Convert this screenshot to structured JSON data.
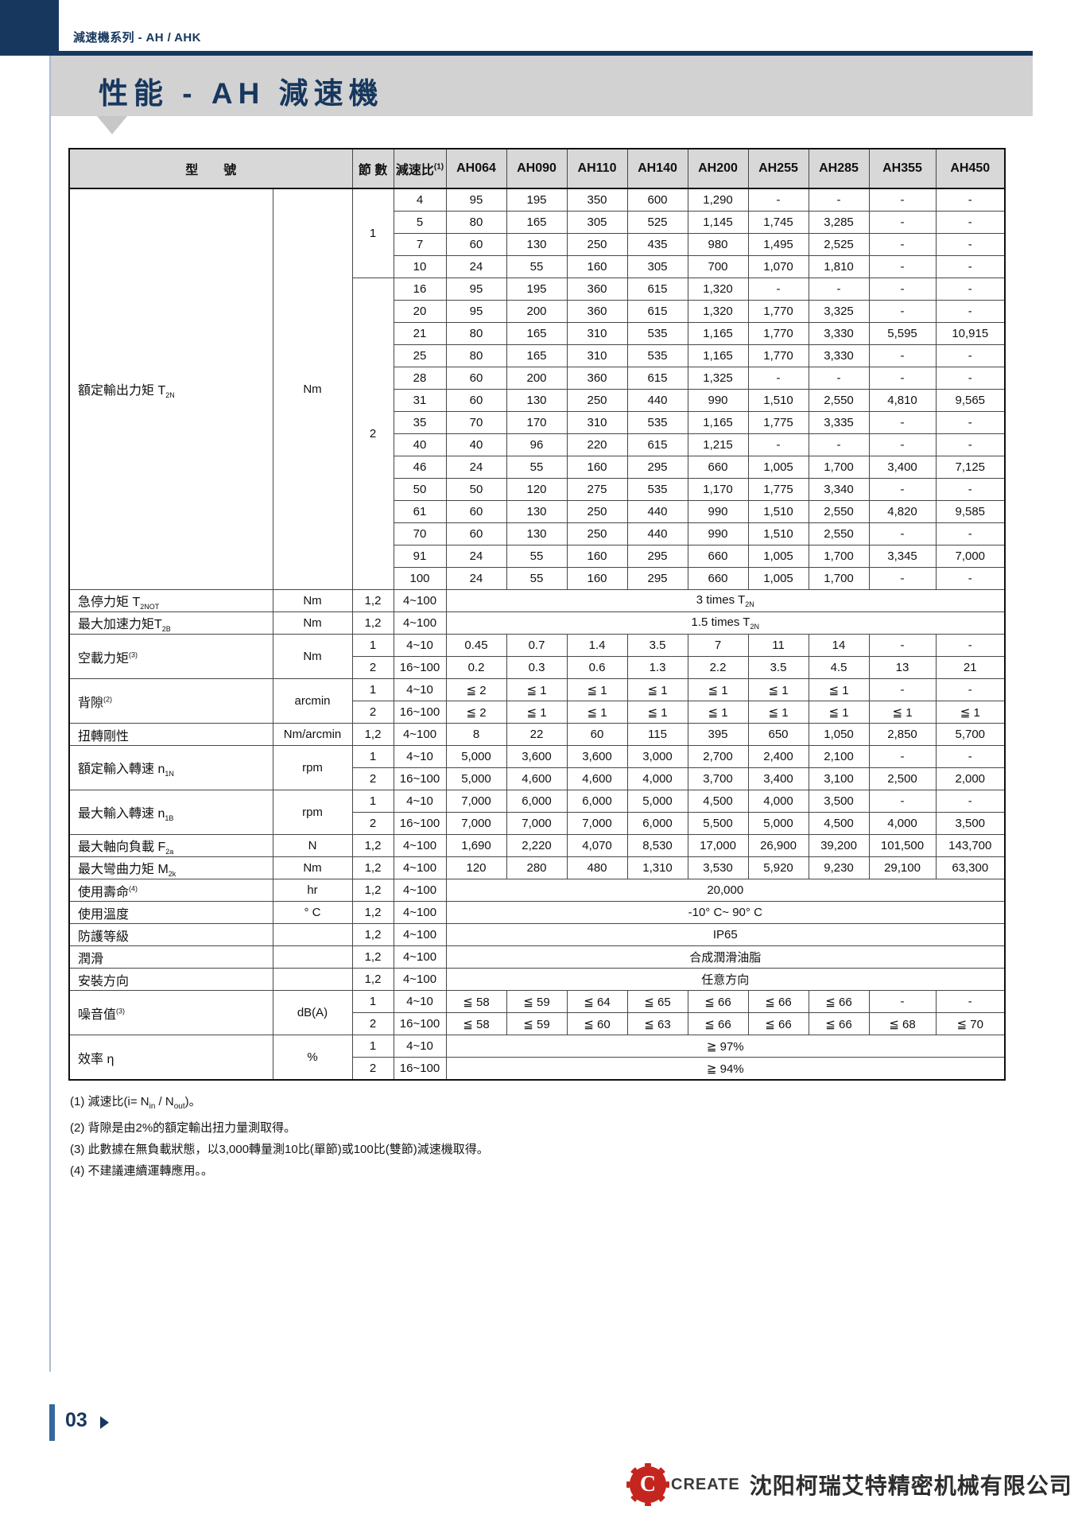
{
  "page": {
    "breadcrumb": "減速機系列 - AH / AHK",
    "title": "性能 - AH 減速機",
    "page_number": "03",
    "logo_letter": "C",
    "logo_text": "CREATE",
    "company_name": "沈阳柯瑞艾特精密机械有限公司",
    "colors": {
      "navy": "#17375e",
      "banner_gray": "#d2d2d2",
      "table_header_gray": "#d8d8d8",
      "logo_red": "#c5251f",
      "page_bar_blue": "#34699e"
    }
  },
  "table": {
    "header": {
      "model": "型　　號",
      "stages": "節 數",
      "ratio": "減速比",
      "ratio_sup": "(1)",
      "models": [
        "AH064",
        "AH090",
        "AH110",
        "AH140",
        "AH200",
        "AH255",
        "AH285",
        "AH355",
        "AH450"
      ]
    },
    "output_torque": {
      "label": "額定輸出力矩 T",
      "label_sub": "2N",
      "unit": "Nm",
      "groups": [
        {
          "stage": "1",
          "rows": [
            {
              "ratio": "4",
              "values": [
                "95",
                "195",
                "350",
                "600",
                "1,290",
                "-",
                "-",
                "-",
                "-"
              ]
            },
            {
              "ratio": "5",
              "values": [
                "80",
                "165",
                "305",
                "525",
                "1,145",
                "1,745",
                "3,285",
                "-",
                "-"
              ]
            },
            {
              "ratio": "7",
              "values": [
                "60",
                "130",
                "250",
                "435",
                "980",
                "1,495",
                "2,525",
                "-",
                "-"
              ]
            },
            {
              "ratio": "10",
              "values": [
                "24",
                "55",
                "160",
                "305",
                "700",
                "1,070",
                "1,810",
                "-",
                "-"
              ]
            }
          ]
        },
        {
          "stage": "2",
          "rows": [
            {
              "ratio": "16",
              "values": [
                "95",
                "195",
                "360",
                "615",
                "1,320",
                "-",
                "-",
                "-",
                "-"
              ]
            },
            {
              "ratio": "20",
              "values": [
                "95",
                "200",
                "360",
                "615",
                "1,320",
                "1,770",
                "3,325",
                "-",
                "-"
              ]
            },
            {
              "ratio": "21",
              "values": [
                "80",
                "165",
                "310",
                "535",
                "1,165",
                "1,770",
                "3,330",
                "5,595",
                "10,915"
              ]
            },
            {
              "ratio": "25",
              "values": [
                "80",
                "165",
                "310",
                "535",
                "1,165",
                "1,770",
                "3,330",
                "-",
                "-"
              ]
            },
            {
              "ratio": "28",
              "values": [
                "60",
                "200",
                "360",
                "615",
                "1,325",
                "-",
                "-",
                "-",
                "-"
              ]
            },
            {
              "ratio": "31",
              "values": [
                "60",
                "130",
                "250",
                "440",
                "990",
                "1,510",
                "2,550",
                "4,810",
                "9,565"
              ]
            },
            {
              "ratio": "35",
              "values": [
                "70",
                "170",
                "310",
                "535",
                "1,165",
                "1,775",
                "3,335",
                "-",
                "-"
              ]
            },
            {
              "ratio": "40",
              "values": [
                "40",
                "96",
                "220",
                "615",
                "1,215",
                "-",
                "-",
                "-",
                "-"
              ]
            },
            {
              "ratio": "46",
              "values": [
                "24",
                "55",
                "160",
                "295",
                "660",
                "1,005",
                "1,700",
                "3,400",
                "7,125"
              ]
            },
            {
              "ratio": "50",
              "values": [
                "50",
                "120",
                "275",
                "535",
                "1,170",
                "1,775",
                "3,340",
                "-",
                "-"
              ]
            },
            {
              "ratio": "61",
              "values": [
                "60",
                "130",
                "250",
                "440",
                "990",
                "1,510",
                "2,550",
                "4,820",
                "9,585"
              ]
            },
            {
              "ratio": "70",
              "values": [
                "60",
                "130",
                "250",
                "440",
                "990",
                "1,510",
                "2,550",
                "-",
                "-"
              ]
            },
            {
              "ratio": "91",
              "values": [
                "24",
                "55",
                "160",
                "295",
                "660",
                "1,005",
                "1,700",
                "3,345",
                "7,000"
              ]
            },
            {
              "ratio": "100",
              "values": [
                "24",
                "55",
                "160",
                "295",
                "660",
                "1,005",
                "1,700",
                "-",
                "-"
              ]
            }
          ]
        }
      ]
    },
    "spec_rows": [
      {
        "label": "急停力矩 T",
        "label_sub": "2NOT",
        "unit": "Nm",
        "rows": [
          {
            "stages": "1,2",
            "ratio": "4~100",
            "span": "3 times T",
            "span_sub": "2N"
          }
        ]
      },
      {
        "label": "最大加速力矩T",
        "label_sub": "2B",
        "unit": "Nm",
        "rows": [
          {
            "stages": "1,2",
            "ratio": "4~100",
            "span": "1.5 times T",
            "span_sub": "2N"
          }
        ]
      },
      {
        "label": "空載力矩",
        "label_sup": "(3)",
        "unit": "Nm",
        "rows": [
          {
            "stages": "1",
            "ratio": "4~10",
            "values": [
              "0.45",
              "0.7",
              "1.4",
              "3.5",
              "7",
              "11",
              "14",
              "-",
              "-"
            ]
          },
          {
            "stages": "2",
            "ratio": "16~100",
            "values": [
              "0.2",
              "0.3",
              "0.6",
              "1.3",
              "2.2",
              "3.5",
              "4.5",
              "13",
              "21"
            ]
          }
        ]
      },
      {
        "label": "背隙",
        "label_sup": "(2)",
        "unit": "arcmin",
        "rows": [
          {
            "stages": "1",
            "ratio": "4~10",
            "values": [
              "≦ 2",
              "≦ 1",
              "≦ 1",
              "≦ 1",
              "≦ 1",
              "≦ 1",
              "≦ 1",
              "-",
              "-"
            ]
          },
          {
            "stages": "2",
            "ratio": "16~100",
            "values": [
              "≦ 2",
              "≦ 1",
              "≦ 1",
              "≦ 1",
              "≦ 1",
              "≦ 1",
              "≦ 1",
              "≦ 1",
              "≦ 1"
            ]
          }
        ]
      },
      {
        "label": "扭轉剛性",
        "unit": "Nm/arcmin",
        "rows": [
          {
            "stages": "1,2",
            "ratio": "4~100",
            "values": [
              "8",
              "22",
              "60",
              "115",
              "395",
              "650",
              "1,050",
              "2,850",
              "5,700"
            ]
          }
        ]
      },
      {
        "label": "額定輸入轉速 n",
        "label_sub": "1N",
        "unit": "rpm",
        "rows": [
          {
            "stages": "1",
            "ratio": "4~10",
            "values": [
              "5,000",
              "3,600",
              "3,600",
              "3,000",
              "2,700",
              "2,400",
              "2,100",
              "-",
              "-"
            ]
          },
          {
            "stages": "2",
            "ratio": "16~100",
            "values": [
              "5,000",
              "4,600",
              "4,600",
              "4,000",
              "3,700",
              "3,400",
              "3,100",
              "2,500",
              "2,000"
            ]
          }
        ]
      },
      {
        "label": "最大輸入轉速 n",
        "label_sub": "1B",
        "unit": "rpm",
        "rows": [
          {
            "stages": "1",
            "ratio": "4~10",
            "values": [
              "7,000",
              "6,000",
              "6,000",
              "5,000",
              "4,500",
              "4,000",
              "3,500",
              "-",
              "-"
            ]
          },
          {
            "stages": "2",
            "ratio": "16~100",
            "values": [
              "7,000",
              "7,000",
              "7,000",
              "6,000",
              "5,500",
              "5,000",
              "4,500",
              "4,000",
              "3,500"
            ]
          }
        ]
      },
      {
        "label": "最大軸向負載 F",
        "label_sub": "2a",
        "unit": "N",
        "rows": [
          {
            "stages": "1,2",
            "ratio": "4~100",
            "values": [
              "1,690",
              "2,220",
              "4,070",
              "8,530",
              "17,000",
              "26,900",
              "39,200",
              "101,500",
              "143,700"
            ]
          }
        ]
      },
      {
        "label": "最大彎曲力矩 M",
        "label_sub": "2k",
        "unit": "Nm",
        "rows": [
          {
            "stages": "1,2",
            "ratio": "4~100",
            "values": [
              "120",
              "280",
              "480",
              "1,310",
              "3,530",
              "5,920",
              "9,230",
              "29,100",
              "63,300"
            ]
          }
        ]
      },
      {
        "label": "使用壽命",
        "label_sup": "(4)",
        "unit": "hr",
        "rows": [
          {
            "stages": "1,2",
            "ratio": "4~100",
            "span": "20,000"
          }
        ]
      },
      {
        "label": "使用溫度",
        "unit": "° C",
        "rows": [
          {
            "stages": "1,2",
            "ratio": "4~100",
            "span": "-10° C~ 90° C"
          }
        ]
      },
      {
        "label": "防護等級",
        "unit": "",
        "rows": [
          {
            "stages": "1,2",
            "ratio": "4~100",
            "span": "IP65"
          }
        ]
      },
      {
        "label": "潤滑",
        "unit": "",
        "rows": [
          {
            "stages": "1,2",
            "ratio": "4~100",
            "span": "合成潤滑油脂"
          }
        ]
      },
      {
        "label": "安裝方向",
        "unit": "",
        "rows": [
          {
            "stages": "1,2",
            "ratio": "4~100",
            "span": "任意方向"
          }
        ]
      },
      {
        "label": "噪音值",
        "label_sup": "(3)",
        "unit": "dB(A)",
        "rows": [
          {
            "stages": "1",
            "ratio": "4~10",
            "values": [
              "≦ 58",
              "≦ 59",
              "≦ 64",
              "≦ 65",
              "≦ 66",
              "≦ 66",
              "≦ 66",
              "-",
              "-"
            ]
          },
          {
            "stages": "2",
            "ratio": "16~100",
            "values": [
              "≦ 58",
              "≦ 59",
              "≦ 60",
              "≦ 63",
              "≦ 66",
              "≦ 66",
              "≦ 66",
              "≦ 68",
              "≦ 70"
            ]
          }
        ]
      },
      {
        "label": "效率 η",
        "unit": "%",
        "rows": [
          {
            "stages": "1",
            "ratio": "4~10",
            "span": "≧ 97%"
          },
          {
            "stages": "2",
            "ratio": "16~100",
            "span": "≧ 94%"
          }
        ]
      }
    ]
  },
  "footnotes": {
    "f1_pre": "(1) 減速比(i= N",
    "f1_sub1": "in",
    "f1_mid": " / N",
    "f1_sub2": "out",
    "f1_post": ")。",
    "f2": "(2) 背隙是由2%的額定輸出扭力量測取得。",
    "f3": "(3) 此數據在無負載狀態，以3,000轉量測10比(單節)或100比(雙節)減速機取得。",
    "f4": "(4) 不建議連續運轉應用。。"
  }
}
